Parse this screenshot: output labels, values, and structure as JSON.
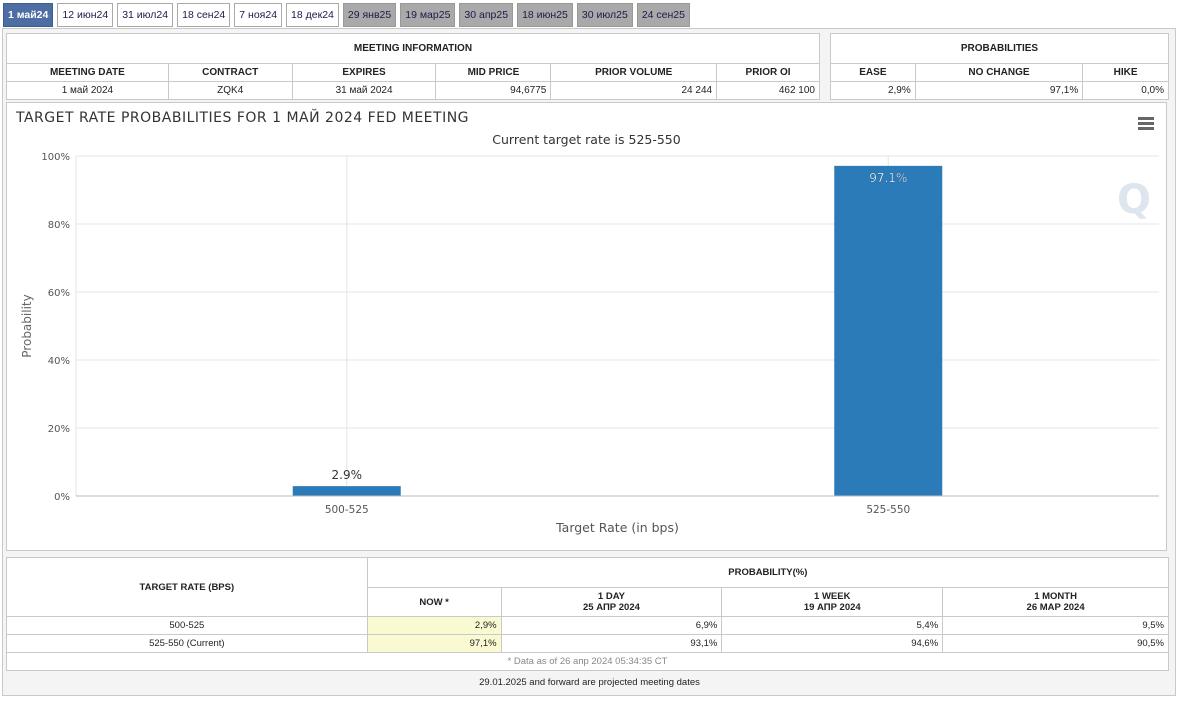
{
  "tabs": [
    {
      "label": "1 май24",
      "state": "active"
    },
    {
      "label": "12 июн24",
      "state": "past"
    },
    {
      "label": "31 июл24",
      "state": "past"
    },
    {
      "label": "18 сен24",
      "state": "past"
    },
    {
      "label": "7 ноя24",
      "state": "past"
    },
    {
      "label": "18 дек24",
      "state": "past"
    },
    {
      "label": "29 янв25",
      "state": "future"
    },
    {
      "label": "19 мар25",
      "state": "future"
    },
    {
      "label": "30 апр25",
      "state": "future"
    },
    {
      "label": "18 июн25",
      "state": "future"
    },
    {
      "label": "30 июл25",
      "state": "future"
    },
    {
      "label": "24 сен25",
      "state": "future"
    }
  ],
  "meeting": {
    "title": "MEETING INFORMATION",
    "headers": [
      "MEETING DATE",
      "CONTRACT",
      "EXPIRES",
      "MID PRICE",
      "PRIOR VOLUME",
      "PRIOR OI"
    ],
    "values": [
      "1 май 2024",
      "ZQK4",
      "31 май 2024",
      "94,6775",
      "24 244",
      "462 100"
    ]
  },
  "probabilities": {
    "title": "PROBABILITIES",
    "headers": [
      "EASE",
      "NO CHANGE",
      "HIKE"
    ],
    "values": [
      "2,9%",
      "97,1%",
      "0,0%"
    ]
  },
  "chart": {
    "title": "TARGET RATE PROBABILITIES FOR 1 МАЙ 2024 FED MEETING",
    "subtitle": "Current target rate is 525-550",
    "bar_color": "#2b7bb9",
    "watermark": "Q"
  },
  "chart_data": {
    "type": "bar",
    "categories": [
      "500-525",
      "525-550"
    ],
    "values": [
      2.9,
      97.1
    ],
    "data_labels": [
      "2.9%",
      "97.1%"
    ],
    "xlabel": "Target Rate (in bps)",
    "ylabel": "Probability",
    "ylim": [
      0,
      100
    ],
    "yticks": [
      "0%",
      "20%",
      "40%",
      "60%",
      "80%",
      "100%"
    ],
    "grid": true
  },
  "bottom": {
    "rate_header": "TARGET RATE (BPS)",
    "prob_header": "PROBABILITY(%)",
    "cols": [
      {
        "line1": "NOW *",
        "line2": ""
      },
      {
        "line1": "1 DAY",
        "line2": "25 АПР 2024"
      },
      {
        "line1": "1 WEEK",
        "line2": "19 АПР 2024"
      },
      {
        "line1": "1 MONTH",
        "line2": "26 МАР 2024"
      }
    ],
    "rows": [
      {
        "rate": "500-525",
        "vals": [
          "2,9%",
          "6,9%",
          "5,4%",
          "9,5%"
        ]
      },
      {
        "rate": "525-550 (Current)",
        "vals": [
          "97,1%",
          "93,1%",
          "94,6%",
          "90,5%"
        ]
      }
    ],
    "note": "* Data as of 26 апр 2024 05:34:35 CT"
  },
  "footer": "29.01.2025 and forward are projected meeting dates"
}
